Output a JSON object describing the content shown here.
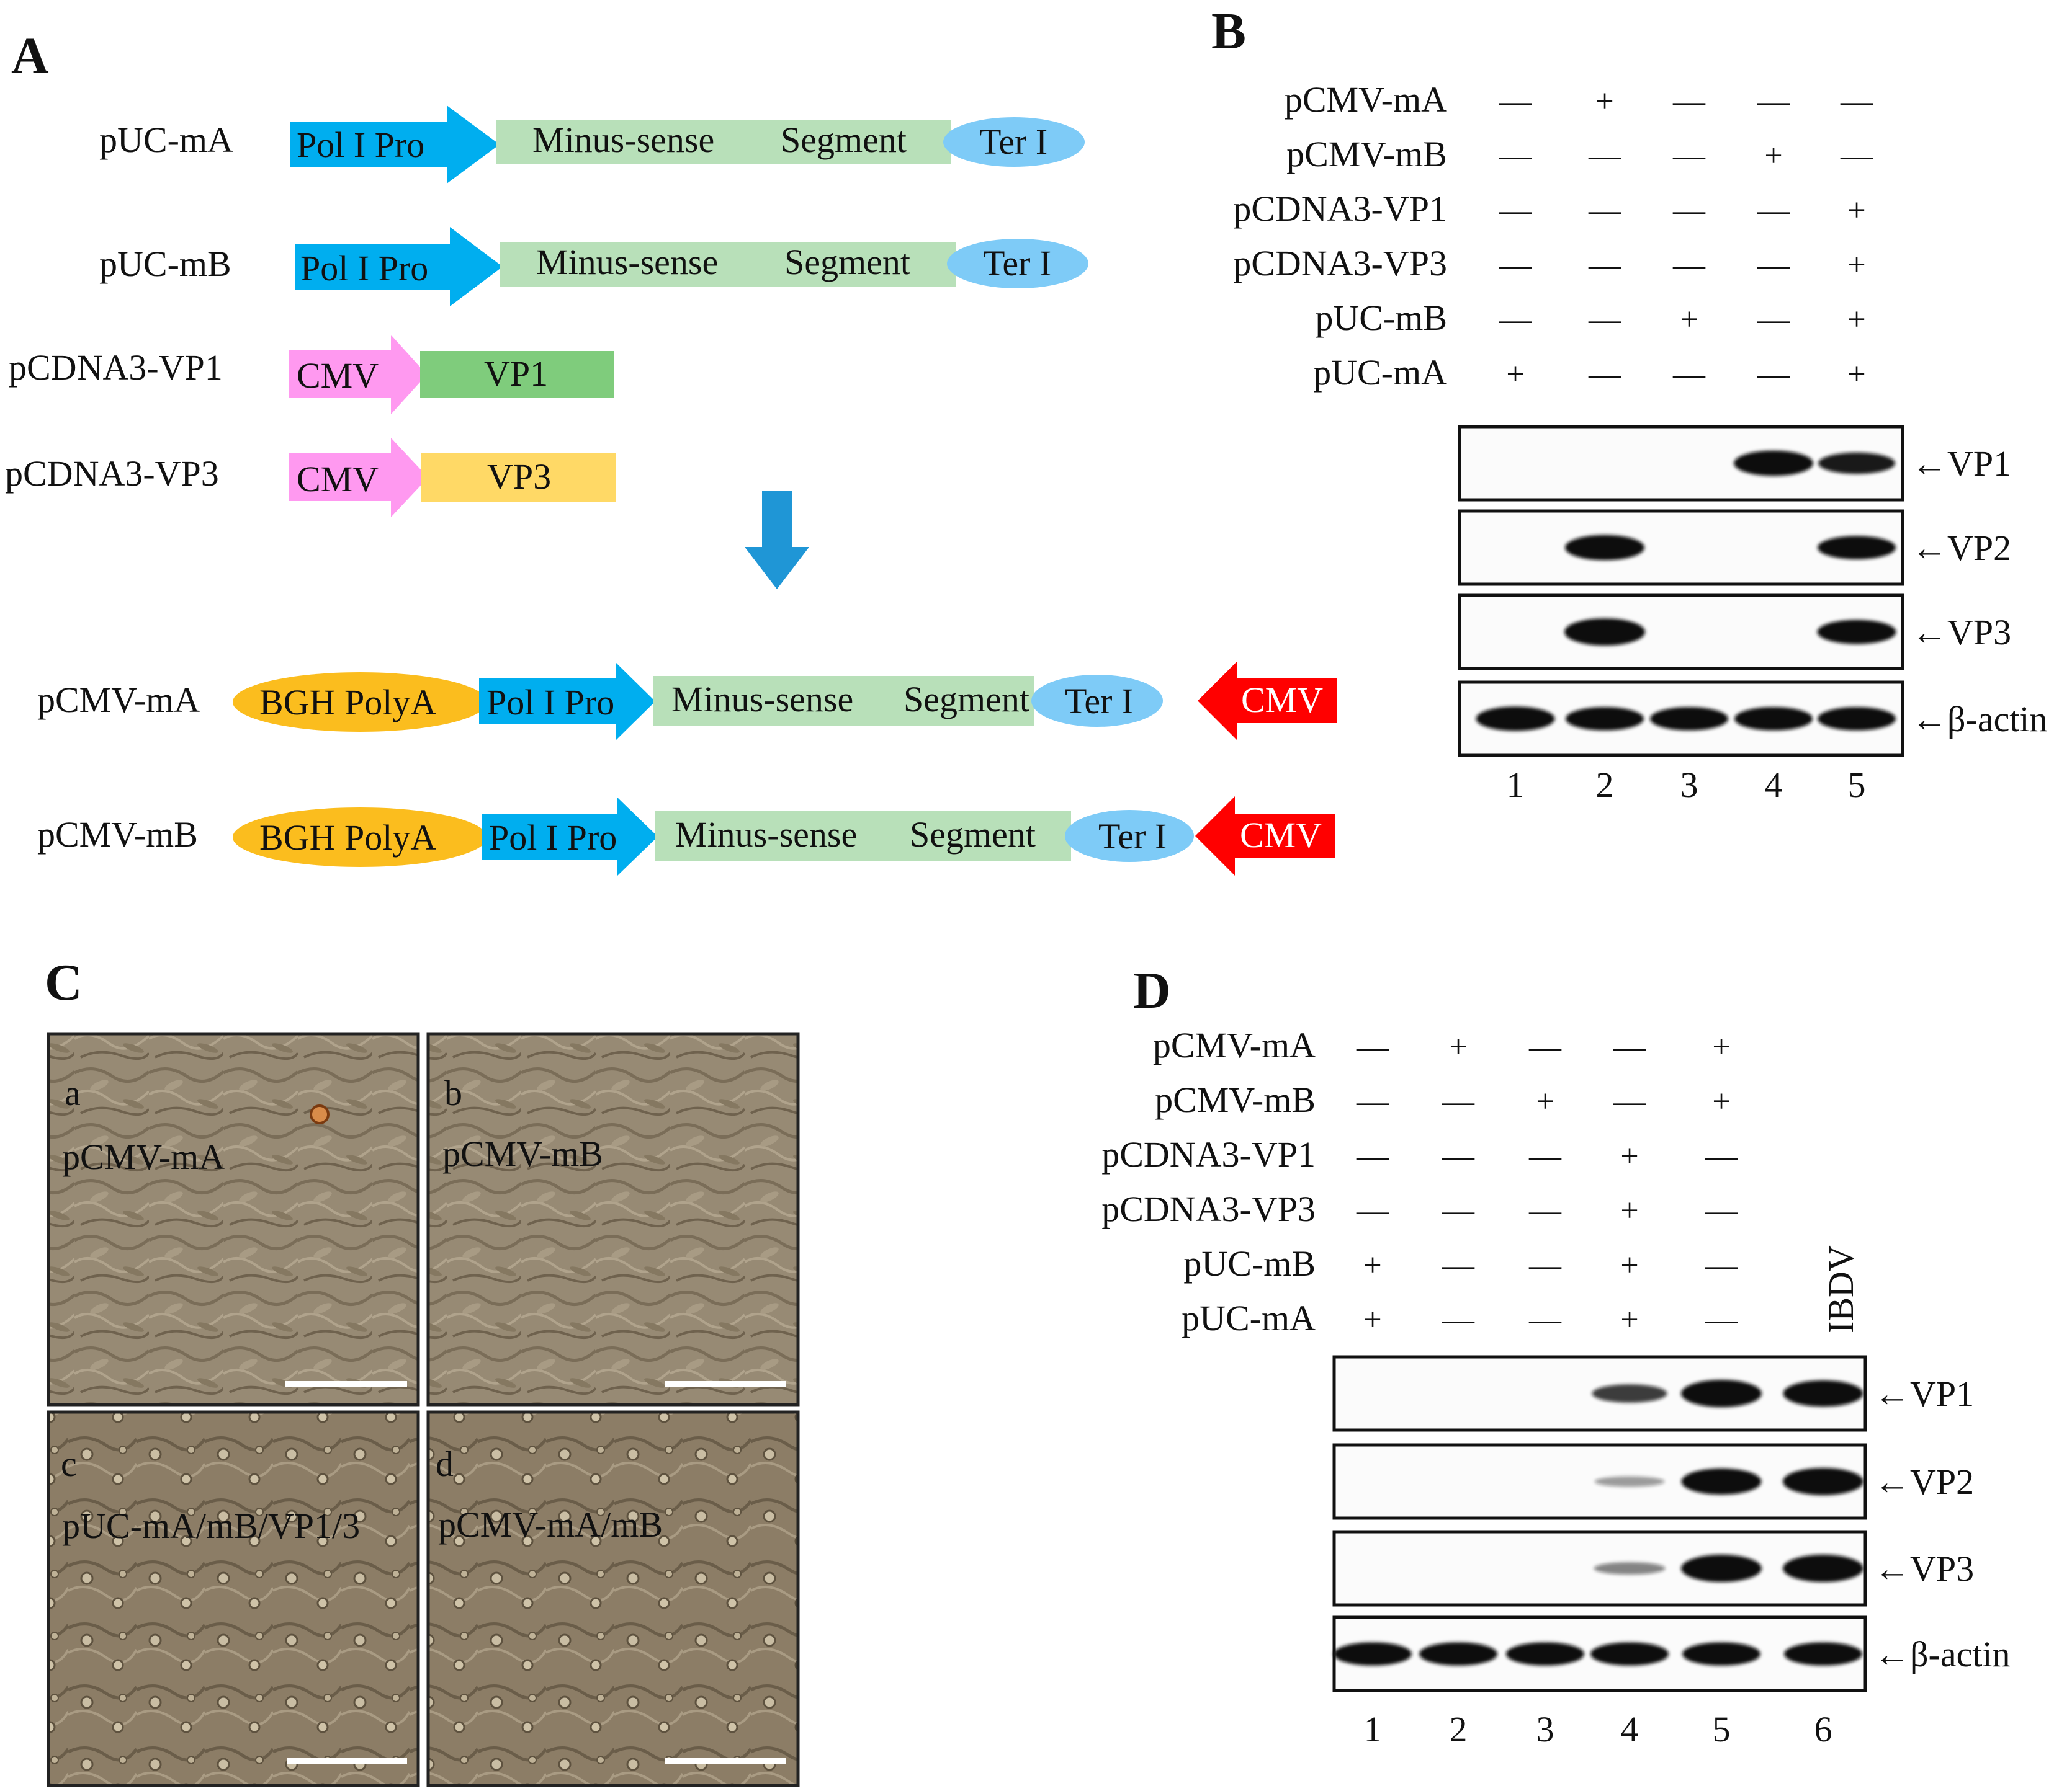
{
  "figure": {
    "colors": {
      "pol_i_pro": "#00aeef",
      "segment": "#b8e0b9",
      "ter_i": "#7ecbf7",
      "cmv_pink": "#ff99f0",
      "vp1_box": "#7fcc7c",
      "vp3_box": "#ffd966",
      "bgh": "#fbbd1e",
      "cmv_red": "#ff0000",
      "down_arrow": "#1f96d6",
      "cell_bg": "#9a8a72"
    },
    "panel_a": {
      "letter": "A",
      "constructs": [
        {
          "name": "pUC-mA",
          "elements": [
            "Pol I Pro",
            "Minus-sense",
            "Segment",
            "Ter I"
          ]
        },
        {
          "name": "pUC-mB",
          "elements": [
            "Pol I Pro",
            "Minus-sense",
            "Segment",
            "Ter I"
          ]
        },
        {
          "name": "pCDNA3-VP1",
          "elements": [
            "CMV",
            "VP1"
          ]
        },
        {
          "name": "pCDNA3-VP3",
          "elements": [
            "CMV",
            "VP3"
          ]
        },
        {
          "name": "pCMV-mA",
          "elements": [
            "BGH PolyA",
            "Pol I Pro",
            "Minus-sense",
            "Segment",
            "Ter I",
            "CMV"
          ]
        },
        {
          "name": "pCMV-mB",
          "elements": [
            "BGH PolyA",
            "Pol I Pro",
            "Minus-sense",
            "Segment",
            "Ter I",
            "CMV"
          ]
        }
      ]
    },
    "panel_b": {
      "letter": "B",
      "rows": [
        {
          "label": "pCMV-mA",
          "signs": [
            "—",
            "+",
            "—",
            "—",
            "—"
          ]
        },
        {
          "label": "pCMV-mB",
          "signs": [
            "—",
            "—",
            "—",
            "+",
            "—"
          ]
        },
        {
          "label": "pCDNA3-VP1",
          "signs": [
            "—",
            "—",
            "—",
            "—",
            "+"
          ]
        },
        {
          "label": "pCDNA3-VP3",
          "signs": [
            "—",
            "—",
            "—",
            "—",
            "+"
          ]
        },
        {
          "label": "pUC-mB",
          "signs": [
            "—",
            "—",
            "+",
            "—",
            "+"
          ]
        },
        {
          "label": "pUC-mA",
          "signs": [
            "+",
            "—",
            "—",
            "—",
            "+"
          ]
        }
      ],
      "blots": [
        {
          "label": "←VP1",
          "bands": [
            0,
            0,
            0,
            0.9,
            0.7
          ]
        },
        {
          "label": "←VP2",
          "bands": [
            0,
            0.9,
            0,
            0,
            0.8
          ]
        },
        {
          "label": "←VP3",
          "bands": [
            0,
            1.0,
            0,
            0,
            0.85
          ]
        },
        {
          "label": "←β-actin",
          "bands": [
            0.85,
            0.8,
            0.8,
            0.8,
            0.8
          ]
        }
      ],
      "lanes": [
        "1",
        "2",
        "3",
        "4",
        "5"
      ]
    },
    "panel_c": {
      "letter": "C",
      "images": [
        {
          "letter": "a",
          "caption": "pCMV-mA"
        },
        {
          "letter": "b",
          "caption": "pCMV-mB"
        },
        {
          "letter": "c",
          "caption": "pUC-mA/mB/VP1/3"
        },
        {
          "letter": "d",
          "caption": "pCMV-mA/mB"
        }
      ]
    },
    "panel_d": {
      "letter": "D",
      "rows": [
        {
          "label": "pCMV-mA",
          "signs": [
            "—",
            "+",
            "—",
            "—",
            "+"
          ]
        },
        {
          "label": "pCMV-mB",
          "signs": [
            "—",
            "—",
            "+",
            "—",
            "+"
          ]
        },
        {
          "label": "pCDNA3-VP1",
          "signs": [
            "—",
            "—",
            "—",
            "+",
            "—"
          ]
        },
        {
          "label": "pCDNA3-VP3",
          "signs": [
            "—",
            "—",
            "—",
            "+",
            "—"
          ]
        },
        {
          "label": "pUC-mB",
          "signs": [
            "+",
            "—",
            "—",
            "+",
            "—"
          ]
        },
        {
          "label": "pUC-mA",
          "signs": [
            "+",
            "—",
            "—",
            "+",
            "—"
          ]
        }
      ],
      "virus_label": "IBDV",
      "blots": [
        {
          "label": "←VP1",
          "bands": [
            0,
            0,
            0,
            0.55,
            1.0,
            0.95
          ]
        },
        {
          "label": "←VP2",
          "bands": [
            0,
            0,
            0,
            0.15,
            0.95,
            1.0
          ]
        },
        {
          "label": "←VP3",
          "bands": [
            0,
            0,
            0,
            0.25,
            1.0,
            1.0
          ]
        },
        {
          "label": "←β-actin",
          "bands": [
            0.8,
            0.8,
            0.8,
            0.8,
            0.8,
            0.8
          ]
        }
      ],
      "lanes": [
        "1",
        "2",
        "3",
        "4",
        "5",
        "6"
      ]
    }
  }
}
